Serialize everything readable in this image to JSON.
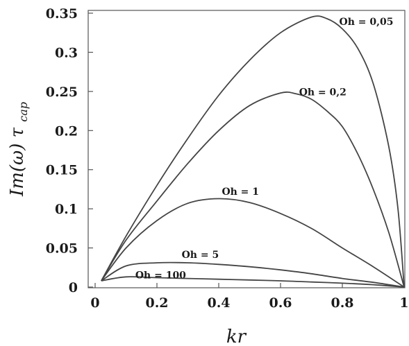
{
  "chart_data": {
    "type": "line",
    "xlabel": "kr",
    "ylabel_main": "Im(ω) τ",
    "ylabel_sub": "cap",
    "xlim": [
      0,
      1
    ],
    "ylim": [
      0,
      0.35
    ],
    "xticks": [
      0,
      0.2,
      0.4,
      0.6,
      0.8,
      1
    ],
    "xtick_labels": [
      "0",
      "0.2",
      "0.4",
      "0.6",
      "0.8",
      "1"
    ],
    "yticks": [
      0,
      0.05,
      0.1,
      0.15,
      0.2,
      0.25,
      0.3,
      0.35
    ],
    "ytick_labels": [
      "0",
      "0.05",
      "0.1",
      "0.15",
      "0.2",
      "0.25",
      "0.3",
      "0.35"
    ],
    "grid": false,
    "legend": "inline labels",
    "series": [
      {
        "name": "Oh = 0,05",
        "x": [
          0.02,
          0.1,
          0.2,
          0.3,
          0.4,
          0.5,
          0.6,
          0.7,
          0.75,
          0.8,
          0.85,
          0.9,
          0.95,
          0.98,
          1.0
        ],
        "y": [
          0.008,
          0.065,
          0.13,
          0.19,
          0.245,
          0.29,
          0.325,
          0.345,
          0.343,
          0.33,
          0.305,
          0.26,
          0.18,
          0.1,
          0.0
        ]
      },
      {
        "name": "Oh = 0,2",
        "x": [
          0.02,
          0.1,
          0.2,
          0.3,
          0.4,
          0.5,
          0.6,
          0.65,
          0.7,
          0.75,
          0.8,
          0.85,
          0.9,
          0.95,
          1.0
        ],
        "y": [
          0.008,
          0.06,
          0.11,
          0.158,
          0.2,
          0.232,
          0.248,
          0.247,
          0.24,
          0.225,
          0.205,
          0.17,
          0.125,
          0.07,
          0.0
        ]
      },
      {
        "name": "Oh = 1",
        "x": [
          0.02,
          0.1,
          0.2,
          0.3,
          0.4,
          0.5,
          0.6,
          0.7,
          0.8,
          0.9,
          1.0
        ],
        "y": [
          0.008,
          0.05,
          0.085,
          0.107,
          0.113,
          0.108,
          0.094,
          0.075,
          0.05,
          0.026,
          0.0
        ]
      },
      {
        "name": "Oh = 5",
        "x": [
          0.02,
          0.1,
          0.2,
          0.3,
          0.4,
          0.5,
          0.6,
          0.7,
          0.8,
          0.9,
          1.0
        ],
        "y": [
          0.008,
          0.027,
          0.031,
          0.031,
          0.029,
          0.026,
          0.022,
          0.017,
          0.011,
          0.006,
          0.0
        ]
      },
      {
        "name": "Oh = 100",
        "x": [
          0.02,
          0.1,
          0.2,
          0.3,
          0.4,
          0.5,
          0.6,
          0.7,
          0.8,
          0.9,
          1.0
        ],
        "y": [
          0.008,
          0.013,
          0.012,
          0.011,
          0.01,
          0.009,
          0.008,
          0.0065,
          0.005,
          0.003,
          0.0
        ]
      }
    ],
    "label_anchors": [
      {
        "x": 0.79,
        "y": 0.335
      },
      {
        "x": 0.66,
        "y": 0.245
      },
      {
        "x": 0.41,
        "y": 0.118
      },
      {
        "x": 0.28,
        "y": 0.037
      },
      {
        "x": 0.13,
        "y": 0.011
      }
    ]
  }
}
